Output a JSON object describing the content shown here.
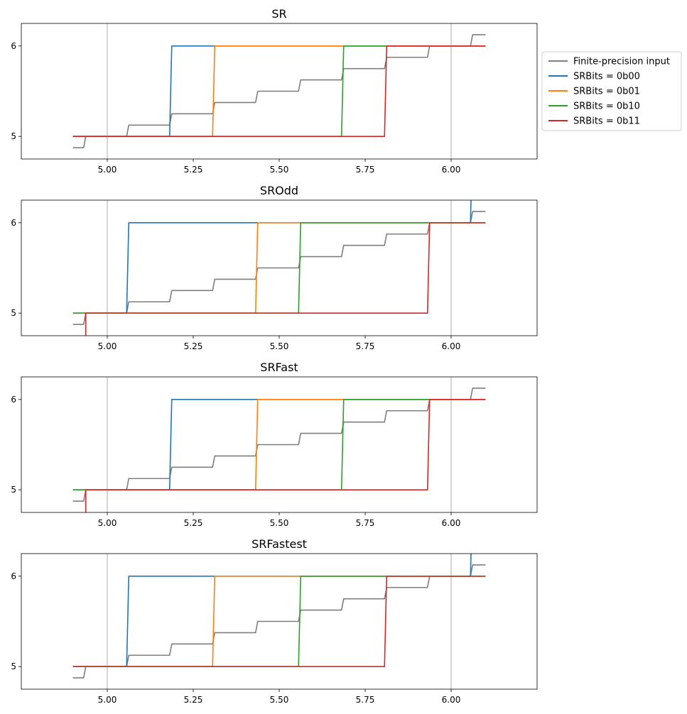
{
  "chart_data": [
    {
      "type": "line",
      "title": "SR",
      "xlim": [
        4.75,
        6.25
      ],
      "ylim": [
        4.75,
        6.25
      ],
      "xticks": [
        "5.00",
        "5.25",
        "5.50",
        "5.75",
        "6.00"
      ],
      "yticks": [
        "5",
        "6"
      ],
      "vlines": [
        5.0,
        6.0
      ],
      "series": [
        {
          "name": "Finite-precision input",
          "color": "#7f7f7f",
          "points": [
            [
              4.9,
              4.875
            ],
            [
              4.93125,
              4.875
            ],
            [
              4.9375,
              5.0
            ],
            [
              5.05625,
              5.0
            ],
            [
              5.0625,
              5.125
            ],
            [
              5.18125,
              5.125
            ],
            [
              5.1875,
              5.25
            ],
            [
              5.30625,
              5.25
            ],
            [
              5.3125,
              5.375
            ],
            [
              5.43125,
              5.375
            ],
            [
              5.4375,
              5.5
            ],
            [
              5.55625,
              5.5
            ],
            [
              5.5625,
              5.625
            ],
            [
              5.68125,
              5.625
            ],
            [
              5.6875,
              5.75
            ],
            [
              5.80625,
              5.75
            ],
            [
              5.8125,
              5.875
            ],
            [
              5.93125,
              5.875
            ],
            [
              5.9375,
              6.0
            ],
            [
              6.05625,
              6.0
            ],
            [
              6.0625,
              6.125
            ],
            [
              6.1,
              6.125
            ]
          ]
        },
        {
          "name": "SRBits = 0b00",
          "color": "#1f77b4",
          "points": [
            [
              4.9,
              5.0
            ],
            [
              5.18125,
              5.0
            ],
            [
              5.1875,
              6.0
            ],
            [
              6.1,
              6.0
            ]
          ]
        },
        {
          "name": "SRBits = 0b01",
          "color": "#ff7f0e",
          "points": [
            [
              4.9,
              5.0
            ],
            [
              5.30625,
              5.0
            ],
            [
              5.3125,
              6.0
            ],
            [
              6.1,
              6.0
            ]
          ]
        },
        {
          "name": "SRBits = 0b10",
          "color": "#2ca02c",
          "points": [
            [
              4.9,
              5.0
            ],
            [
              5.68125,
              5.0
            ],
            [
              5.6875,
              6.0
            ],
            [
              6.1,
              6.0
            ]
          ]
        },
        {
          "name": "SRBits = 0b11",
          "color": "#d62728",
          "points": [
            [
              4.9,
              5.0
            ],
            [
              5.80625,
              5.0
            ],
            [
              5.8125,
              6.0
            ],
            [
              6.1,
              6.0
            ]
          ]
        }
      ]
    },
    {
      "type": "line",
      "title": "SROdd",
      "xlim": [
        4.75,
        6.25
      ],
      "ylim": [
        4.75,
        6.25
      ],
      "xticks": [
        "5.00",
        "5.25",
        "5.50",
        "5.75",
        "6.00"
      ],
      "yticks": [
        "5",
        "6"
      ],
      "vlines": [
        5.0,
        6.0
      ],
      "series": [
        {
          "name": "Finite-precision input",
          "color": "#7f7f7f",
          "points": [
            [
              4.9,
              4.875
            ],
            [
              4.93125,
              4.875
            ],
            [
              4.9375,
              5.0
            ],
            [
              5.05625,
              5.0
            ],
            [
              5.0625,
              5.125
            ],
            [
              5.18125,
              5.125
            ],
            [
              5.1875,
              5.25
            ],
            [
              5.30625,
              5.25
            ],
            [
              5.3125,
              5.375
            ],
            [
              5.43125,
              5.375
            ],
            [
              5.4375,
              5.5
            ],
            [
              5.55625,
              5.5
            ],
            [
              5.5625,
              5.625
            ],
            [
              5.68125,
              5.625
            ],
            [
              5.6875,
              5.75
            ],
            [
              5.80625,
              5.75
            ],
            [
              5.8125,
              5.875
            ],
            [
              5.93125,
              5.875
            ],
            [
              5.9375,
              6.0
            ],
            [
              6.05625,
              6.0
            ],
            [
              6.0625,
              6.125
            ],
            [
              6.1,
              6.125
            ]
          ]
        },
        {
          "name": "SRBits = 0b00",
          "color": "#1f77b4",
          "points": [
            [
              4.9,
              5.0
            ],
            [
              5.05625,
              5.0
            ],
            [
              5.0625,
              6.0
            ],
            [
              6.05625,
              6.0
            ],
            [
              6.0625,
              7.0
            ]
          ]
        },
        {
          "name": "SRBits = 0b01",
          "color": "#ff7f0e",
          "points": [
            [
              4.9,
              5.0
            ],
            [
              5.43125,
              5.0
            ],
            [
              5.4375,
              6.0
            ],
            [
              6.1,
              6.0
            ]
          ]
        },
        {
          "name": "SRBits = 0b10",
          "color": "#2ca02c",
          "points": [
            [
              4.9,
              5.0
            ],
            [
              5.55625,
              5.0
            ],
            [
              5.5625,
              6.0
            ],
            [
              6.1,
              6.0
            ]
          ]
        },
        {
          "name": "SRBits = 0b11",
          "color": "#d62728",
          "points": [
            [
              4.9375,
              4.0
            ],
            [
              4.9375,
              5.0
            ],
            [
              5.93125,
              5.0
            ],
            [
              5.9375,
              6.0
            ],
            [
              6.1,
              6.0
            ]
          ]
        }
      ]
    },
    {
      "type": "line",
      "title": "SRFast",
      "xlim": [
        4.75,
        6.25
      ],
      "ylim": [
        4.75,
        6.25
      ],
      "xticks": [
        "5.00",
        "5.25",
        "5.50",
        "5.75",
        "6.00"
      ],
      "yticks": [
        "5",
        "6"
      ],
      "vlines": [
        5.0,
        6.0
      ],
      "series": [
        {
          "name": "Finite-precision input",
          "color": "#7f7f7f",
          "points": [
            [
              4.9,
              4.875
            ],
            [
              4.93125,
              4.875
            ],
            [
              4.9375,
              5.0
            ],
            [
              5.05625,
              5.0
            ],
            [
              5.0625,
              5.125
            ],
            [
              5.18125,
              5.125
            ],
            [
              5.1875,
              5.25
            ],
            [
              5.30625,
              5.25
            ],
            [
              5.3125,
              5.375
            ],
            [
              5.43125,
              5.375
            ],
            [
              5.4375,
              5.5
            ],
            [
              5.55625,
              5.5
            ],
            [
              5.5625,
              5.625
            ],
            [
              5.68125,
              5.625
            ],
            [
              5.6875,
              5.75
            ],
            [
              5.80625,
              5.75
            ],
            [
              5.8125,
              5.875
            ],
            [
              5.93125,
              5.875
            ],
            [
              5.9375,
              6.0
            ],
            [
              6.05625,
              6.0
            ],
            [
              6.0625,
              6.125
            ],
            [
              6.1,
              6.125
            ]
          ]
        },
        {
          "name": "SRBits = 0b00",
          "color": "#1f77b4",
          "points": [
            [
              4.9,
              5.0
            ],
            [
              5.18125,
              5.0
            ],
            [
              5.1875,
              6.0
            ],
            [
              6.1,
              6.0
            ]
          ]
        },
        {
          "name": "SRBits = 0b01",
          "color": "#ff7f0e",
          "points": [
            [
              4.9,
              5.0
            ],
            [
              5.43125,
              5.0
            ],
            [
              5.4375,
              6.0
            ],
            [
              6.1,
              6.0
            ]
          ]
        },
        {
          "name": "SRBits = 0b10",
          "color": "#2ca02c",
          "points": [
            [
              4.9,
              5.0
            ],
            [
              5.68125,
              5.0
            ],
            [
              5.6875,
              6.0
            ],
            [
              6.1,
              6.0
            ]
          ]
        },
        {
          "name": "SRBits = 0b11",
          "color": "#d62728",
          "points": [
            [
              4.9375,
              4.0
            ],
            [
              4.9375,
              5.0
            ],
            [
              5.93125,
              5.0
            ],
            [
              5.9375,
              6.0
            ],
            [
              6.1,
              6.0
            ]
          ]
        }
      ]
    },
    {
      "type": "line",
      "title": "SRFastest",
      "xlim": [
        4.75,
        6.25
      ],
      "ylim": [
        4.75,
        6.25
      ],
      "xticks": [
        "5.00",
        "5.25",
        "5.50",
        "5.75",
        "6.00"
      ],
      "yticks": [
        "5",
        "6"
      ],
      "vlines": [
        5.0,
        6.0
      ],
      "series": [
        {
          "name": "Finite-precision input",
          "color": "#7f7f7f",
          "points": [
            [
              4.9,
              4.875
            ],
            [
              4.93125,
              4.875
            ],
            [
              4.9375,
              5.0
            ],
            [
              5.05625,
              5.0
            ],
            [
              5.0625,
              5.125
            ],
            [
              5.18125,
              5.125
            ],
            [
              5.1875,
              5.25
            ],
            [
              5.30625,
              5.25
            ],
            [
              5.3125,
              5.375
            ],
            [
              5.43125,
              5.375
            ],
            [
              5.4375,
              5.5
            ],
            [
              5.55625,
              5.5
            ],
            [
              5.5625,
              5.625
            ],
            [
              5.68125,
              5.625
            ],
            [
              5.6875,
              5.75
            ],
            [
              5.80625,
              5.75
            ],
            [
              5.8125,
              5.875
            ],
            [
              5.93125,
              5.875
            ],
            [
              5.9375,
              6.0
            ],
            [
              6.05625,
              6.0
            ],
            [
              6.0625,
              6.125
            ],
            [
              6.1,
              6.125
            ]
          ]
        },
        {
          "name": "SRBits = 0b00",
          "color": "#1f77b4",
          "points": [
            [
              4.9,
              5.0
            ],
            [
              5.05625,
              5.0
            ],
            [
              5.0625,
              6.0
            ],
            [
              6.05625,
              6.0
            ],
            [
              6.0625,
              7.0
            ]
          ]
        },
        {
          "name": "SRBits = 0b01",
          "color": "#ff7f0e",
          "points": [
            [
              4.9,
              5.0
            ],
            [
              5.30625,
              5.0
            ],
            [
              5.3125,
              6.0
            ],
            [
              6.1,
              6.0
            ]
          ]
        },
        {
          "name": "SRBits = 0b10",
          "color": "#2ca02c",
          "points": [
            [
              4.9,
              5.0
            ],
            [
              5.55625,
              5.0
            ],
            [
              5.5625,
              6.0
            ],
            [
              6.1,
              6.0
            ]
          ]
        },
        {
          "name": "SRBits = 0b11",
          "color": "#d62728",
          "points": [
            [
              4.9,
              5.0
            ],
            [
              5.80625,
              5.0
            ],
            [
              5.8125,
              6.0
            ],
            [
              6.1,
              6.0
            ]
          ]
        }
      ]
    }
  ],
  "legend": {
    "placement": "right of first subplot",
    "entries": [
      {
        "label": "Finite-precision input",
        "color": "#7f7f7f"
      },
      {
        "label": "SRBits = 0b00",
        "color": "#1f77b4"
      },
      {
        "label": "SRBits = 0b01",
        "color": "#ff7f0e"
      },
      {
        "label": "SRBits = 0b10",
        "color": "#2ca02c"
      },
      {
        "label": "SRBits = 0b11",
        "color": "#d62728"
      }
    ]
  }
}
